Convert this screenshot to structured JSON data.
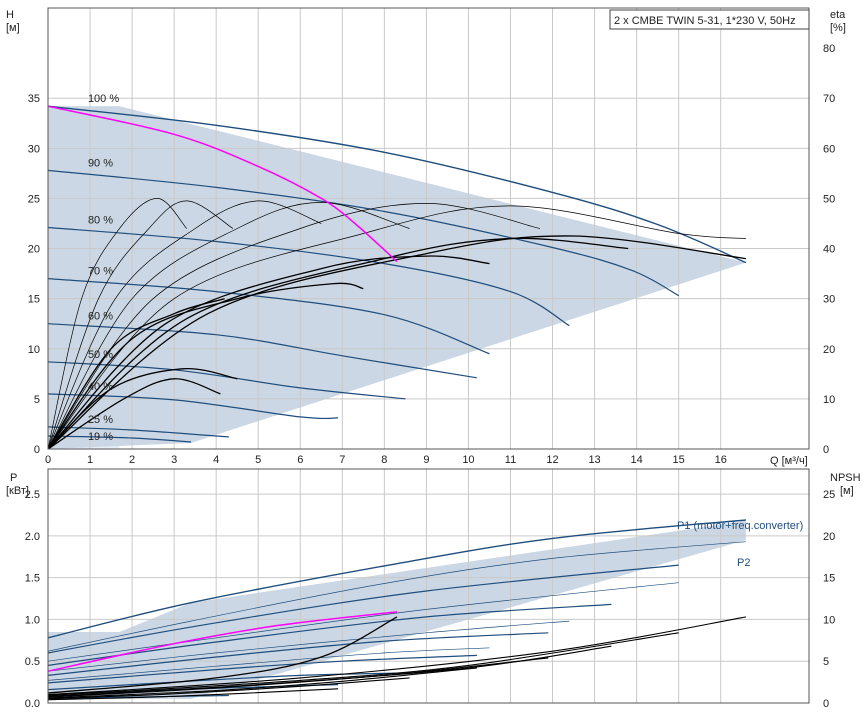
{
  "chart_data": [
    {
      "type": "line",
      "title": "2 x CMBE TWIN 5-31, 1*230 V, 50Hz",
      "ylabel_left": "H",
      "ylabel_left_unit": "[м]",
      "ylabel_right": "eta",
      "ylabel_right_unit": "[%]",
      "xlabel": "Q [м³/ч]",
      "xlim": [
        0,
        18.1
      ],
      "ylim_left": [
        0,
        44
      ],
      "ylim_right": [
        0,
        88
      ],
      "x_ticks": [
        0,
        1,
        2,
        3,
        4,
        5,
        6,
        7,
        8,
        9,
        10,
        11,
        12,
        13,
        14,
        15,
        16
      ],
      "y_ticks_left": [
        0,
        5,
        10,
        15,
        20,
        25,
        30,
        35
      ],
      "y_ticks_right": [
        0,
        10,
        20,
        30,
        40,
        50,
        60,
        70,
        80
      ],
      "grid": true,
      "operating_range_head": [
        [
          1.7,
          34.2
        ],
        [
          16.6,
          18.6
        ],
        [
          3.4,
          0.6
        ],
        [
          0,
          0
        ],
        [
          0,
          34.2
        ]
      ],
      "speed_curves": [
        {
          "name": "100 %",
          "points": [
            [
              0,
              34.2
            ],
            [
              4,
              32.3
            ],
            [
              8,
              29.6
            ],
            [
              12,
              25.6
            ],
            [
              14.5,
              22.4
            ],
            [
              16.6,
              18.6
            ]
          ]
        },
        {
          "name": "90 %",
          "points": [
            [
              0,
              27.8
            ],
            [
              4,
              26.1
            ],
            [
              8,
              23.7
            ],
            [
              12,
              20.1
            ],
            [
              13.9,
              17.8
            ],
            [
              15,
              15.3
            ]
          ]
        },
        {
          "name": "80 %",
          "points": [
            [
              0,
              22.1
            ],
            [
              4,
              20.7
            ],
            [
              8,
              18.5
            ],
            [
              11,
              15.7
            ],
            [
              12.4,
              12.3
            ]
          ]
        },
        {
          "name": "70 %",
          "points": [
            [
              0,
              17.0
            ],
            [
              4,
              15.7
            ],
            [
              8,
              13.4
            ],
            [
              10.5,
              9.5
            ]
          ]
        },
        {
          "name": "60 %",
          "points": [
            [
              0,
              12.5
            ],
            [
              4,
              11.4
            ],
            [
              7,
              9.3
            ],
            [
              10.2,
              7.1
            ]
          ]
        },
        {
          "name": "50 %",
          "points": [
            [
              0,
              8.7
            ],
            [
              3,
              7.9
            ],
            [
              6,
              6.1
            ],
            [
              8.5,
              5.0
            ]
          ]
        },
        {
          "name": "40 %",
          "points": [
            [
              0,
              5.5
            ],
            [
              3,
              4.9
            ],
            [
              6,
              3.2
            ],
            [
              6.9,
              3.1
            ]
          ]
        },
        {
          "name": "25 %",
          "points": [
            [
              0,
              2.2
            ],
            [
              2,
              1.9
            ],
            [
              4.3,
              1.2
            ]
          ]
        },
        {
          "name": "19 %",
          "points": [
            [
              0,
              1.3
            ],
            [
              2,
              1.1
            ],
            [
              3.4,
              0.7
            ]
          ]
        }
      ],
      "selected_curve": [
        [
          0,
          34.2
        ],
        [
          3,
          31.4
        ],
        [
          5,
          28.2
        ],
        [
          6.5,
          25.0
        ],
        [
          7.3,
          22.5
        ],
        [
          8.3,
          18.7
        ]
      ],
      "eta_curves": [
        {
          "name": "eta-1",
          "points": [
            [
              0,
              0
            ],
            [
              0.8,
              30
            ],
            [
              1.7,
              44
            ],
            [
              2.6,
              50
            ],
            [
              3.3,
              44
            ]
          ]
        },
        {
          "name": "eta-2",
          "points": [
            [
              0,
              0
            ],
            [
              1.2,
              30
            ],
            [
              2.4,
              44
            ],
            [
              3.3,
              49.5
            ],
            [
              4.4,
              44
            ]
          ]
        },
        {
          "name": "eta-3",
          "points": [
            [
              0,
              0
            ],
            [
              1.6,
              30
            ],
            [
              3.5,
              44
            ],
            [
              5.0,
              49.5
            ],
            [
              6.5,
              45
            ]
          ]
        },
        {
          "name": "eta-4",
          "points": [
            [
              0,
              0
            ],
            [
              2.0,
              30
            ],
            [
              4.5,
              44
            ],
            [
              6.5,
              49.2
            ],
            [
              8.6,
              44
            ]
          ]
        },
        {
          "name": "eta-5",
          "points": [
            [
              0,
              0
            ],
            [
              2.5,
              30
            ],
            [
              6.0,
              44
            ],
            [
              9.0,
              49
            ],
            [
              11.7,
              44
            ]
          ]
        },
        {
          "name": "eta-6",
          "points": [
            [
              0,
              0
            ],
            [
              3.0,
              30
            ],
            [
              7.5,
              43
            ],
            [
              11.0,
              48.5
            ],
            [
              15.0,
              43
            ],
            [
              16.6,
              42
            ]
          ]
        },
        {
          "name": "eta-7",
          "points": [
            [
              0,
              0
            ],
            [
              1.5,
              20
            ],
            [
              3.0,
              27
            ],
            [
              4.2,
              30
            ]
          ]
        },
        {
          "name": "eta-8",
          "points": [
            [
              0,
              0
            ],
            [
              2.0,
              22
            ],
            [
              4.5,
              30
            ],
            [
              6.8,
              33
            ],
            [
              7.5,
              32
            ]
          ]
        },
        {
          "name": "eta-9",
          "points": [
            [
              0,
              0
            ],
            [
              2.8,
              25
            ],
            [
              6.5,
              36
            ],
            [
              9.0,
              38.5
            ],
            [
              10.5,
              37
            ]
          ]
        },
        {
          "name": "eta-10",
          "points": [
            [
              0,
              0
            ],
            [
              3.3,
              26
            ],
            [
              8.0,
              38
            ],
            [
              11.0,
              42
            ],
            [
              13.8,
              40
            ]
          ]
        },
        {
          "name": "eta-11",
          "points": [
            [
              0,
              0
            ],
            [
              3.8,
              27
            ],
            [
              9.0,
              39
            ],
            [
              12.5,
              42.5
            ],
            [
              16.6,
              38
            ]
          ]
        },
        {
          "name": "eta-12",
          "points": [
            [
              0,
              0
            ],
            [
              1.5,
              12
            ],
            [
              3.2,
              16
            ],
            [
              4.5,
              14
            ]
          ]
        },
        {
          "name": "eta-13",
          "points": [
            [
              0,
              0
            ],
            [
              1.8,
              10
            ],
            [
              3.0,
              14
            ],
            [
              4.1,
              11
            ]
          ]
        }
      ],
      "annotations": [
        "100 %",
        "90 %",
        "80 %",
        "70 %",
        "60 %",
        "50 %",
        "40 %",
        "25 %",
        "19 %"
      ]
    },
    {
      "type": "line",
      "ylabel_left": "P",
      "ylabel_left_unit": "[кВт]",
      "ylabel_right": "NPSH",
      "ylabel_right_unit": "[м]",
      "xlim": [
        0,
        18.1
      ],
      "ylim_left": [
        0,
        2.8
      ],
      "ylim_right": [
        0,
        28
      ],
      "y_ticks_left": [
        0.0,
        0.5,
        1.0,
        1.5,
        2.0,
        2.5
      ],
      "y_ticks_right": [
        0,
        5,
        10,
        15,
        20,
        25
      ],
      "grid": true,
      "operating_range_power": [
        [
          1.7,
          0.85
        ],
        [
          3.4,
          1.2
        ],
        [
          16.6,
          2.18
        ],
        [
          16.6,
          1.95
        ],
        [
          3.4,
          0.05
        ],
        [
          0,
          0.05
        ],
        [
          0,
          0.85
        ]
      ],
      "p1_curves": [
        {
          "name": "P1 (motor+freq.converter)",
          "points": [
            [
              0,
              0.78
            ],
            [
              3.4,
              1.2
            ],
            [
              8,
              1.64
            ],
            [
              12,
              1.97
            ],
            [
              16.6,
              2.19
            ]
          ]
        },
        {
          "name": "p1-90",
          "points": [
            [
              0,
              0.6
            ],
            [
              4,
              0.96
            ],
            [
              9,
              1.34
            ],
            [
              15,
              1.65
            ]
          ]
        },
        {
          "name": "p1-80",
          "points": [
            [
              0,
              0.45
            ],
            [
              4,
              0.73
            ],
            [
              9,
              1.03
            ],
            [
              13.4,
              1.18
            ]
          ]
        },
        {
          "name": "p1-70",
          "points": [
            [
              0,
              0.33
            ],
            [
              4,
              0.55
            ],
            [
              8,
              0.74
            ],
            [
              11.9,
              0.84
            ]
          ]
        },
        {
          "name": "p1-60",
          "points": [
            [
              0,
              0.24
            ],
            [
              4,
              0.4
            ],
            [
              7,
              0.5
            ],
            [
              10.2,
              0.57
            ]
          ]
        },
        {
          "name": "p1-50",
          "points": [
            [
              0,
              0.16
            ],
            [
              3,
              0.25
            ],
            [
              6,
              0.33
            ],
            [
              8.6,
              0.36
            ]
          ]
        },
        {
          "name": "p1-40",
          "points": [
            [
              0,
              0.1
            ],
            [
              3,
              0.16
            ],
            [
              6.9,
              0.22
            ]
          ]
        },
        {
          "name": "p1-25",
          "points": [
            [
              0,
              0.05
            ],
            [
              2,
              0.07
            ],
            [
              4.3,
              0.09
            ]
          ]
        }
      ],
      "p2_curves": [
        {
          "name": "P2",
          "points": [
            [
              0,
              0.62
            ],
            [
              3.4,
              0.98
            ],
            [
              8,
              1.43
            ],
            [
              12,
              1.73
            ],
            [
              16.6,
              1.93
            ]
          ]
        },
        {
          "name": "p2-90",
          "points": [
            [
              0,
              0.5
            ],
            [
              4,
              0.78
            ],
            [
              9,
              1.12
            ],
            [
              15,
              1.44
            ]
          ]
        },
        {
          "name": "p2-80",
          "points": [
            [
              0,
              0.38
            ],
            [
              4,
              0.6
            ],
            [
              9,
              0.84
            ],
            [
              12.4,
              0.98
            ]
          ]
        },
        {
          "name": "p2-70",
          "points": [
            [
              0,
              0.27
            ],
            [
              4,
              0.44
            ],
            [
              8,
              0.6
            ],
            [
              10.5,
              0.66
            ]
          ]
        }
      ],
      "selected_power_curve": [
        [
          0,
          0.38
        ],
        [
          3,
          0.71
        ],
        [
          5.5,
          0.93
        ],
        [
          8.3,
          1.09
        ]
      ],
      "npsh_curves": [
        {
          "name": "npsh-1",
          "points": [
            [
              0,
              0.12
            ],
            [
              4,
              0.3
            ],
            [
              6.5,
              0.55
            ],
            [
              8.3,
              1.03
            ]
          ]
        },
        {
          "name": "npsh-2",
          "points": [
            [
              0,
              0.1
            ],
            [
              6,
              0.3
            ],
            [
              12,
              0.62
            ],
            [
              16.6,
              1.03
            ]
          ]
        },
        {
          "name": "npsh-3",
          "points": [
            [
              0,
              0.09
            ],
            [
              6,
              0.27
            ],
            [
              10,
              0.45
            ],
            [
              15,
              0.84
            ]
          ]
        },
        {
          "name": "npsh-4",
          "points": [
            [
              0,
              0.08
            ],
            [
              5,
              0.22
            ],
            [
              10,
              0.42
            ],
            [
              13.4,
              0.68
            ]
          ]
        },
        {
          "name": "npsh-5",
          "points": [
            [
              0,
              0.07
            ],
            [
              4,
              0.18
            ],
            [
              8,
              0.33
            ],
            [
              11.9,
              0.54
            ]
          ]
        },
        {
          "name": "npsh-6",
          "points": [
            [
              0,
              0.06
            ],
            [
              4,
              0.15
            ],
            [
              7,
              0.26
            ],
            [
              10.2,
              0.42
            ]
          ]
        },
        {
          "name": "npsh-7",
          "points": [
            [
              0,
              0.05
            ],
            [
              3,
              0.11
            ],
            [
              6,
              0.2
            ],
            [
              8.6,
              0.3
            ]
          ]
        },
        {
          "name": "npsh-8",
          "points": [
            [
              0,
              0.04
            ],
            [
              3,
              0.08
            ],
            [
              6.9,
              0.17
            ]
          ]
        }
      ],
      "legend_labels": [
        "P1 (motor+freq.converter)",
        "P2"
      ]
    }
  ],
  "colors": {
    "range_fill": "#cbd7e4",
    "range_light": "#e6eef8",
    "speed_curve": "#1f4e7d",
    "selected_curve": "#ff00ff",
    "eta_curve": "#000000",
    "grid": "#c9c9c9"
  }
}
